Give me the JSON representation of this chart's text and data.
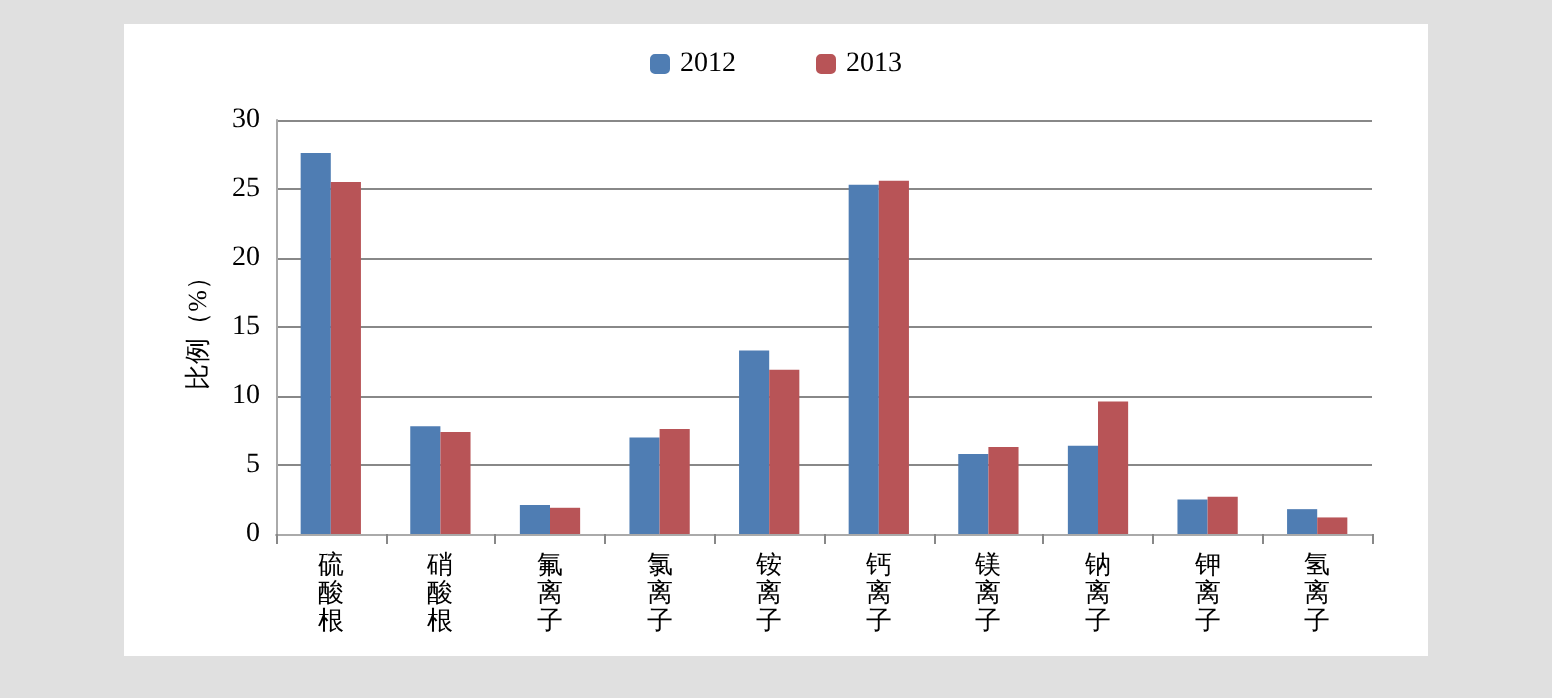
{
  "chart_data": {
    "type": "bar",
    "ylabel": "比例（%）",
    "categories": [
      "硫酸根",
      "硝酸根",
      "氟离子",
      "氯离子",
      "铵离子",
      "钙离子",
      "镁离子",
      "钠离子",
      "钾离子",
      "氢离子"
    ],
    "series": [
      {
        "name": "2012",
        "color": "#4f7db3",
        "values": [
          27.6,
          7.8,
          2.1,
          7.0,
          13.3,
          25.3,
          5.8,
          6.4,
          2.5,
          1.8
        ]
      },
      {
        "name": "2013",
        "color": "#b85457",
        "values": [
          25.5,
          7.4,
          1.9,
          7.6,
          11.9,
          25.6,
          6.3,
          9.6,
          2.7,
          1.2
        ]
      }
    ],
    "ylim": [
      0,
      30
    ],
    "yticks": [
      0,
      5,
      10,
      15,
      20,
      25,
      30
    ],
    "grid": "y",
    "legend": "top"
  }
}
